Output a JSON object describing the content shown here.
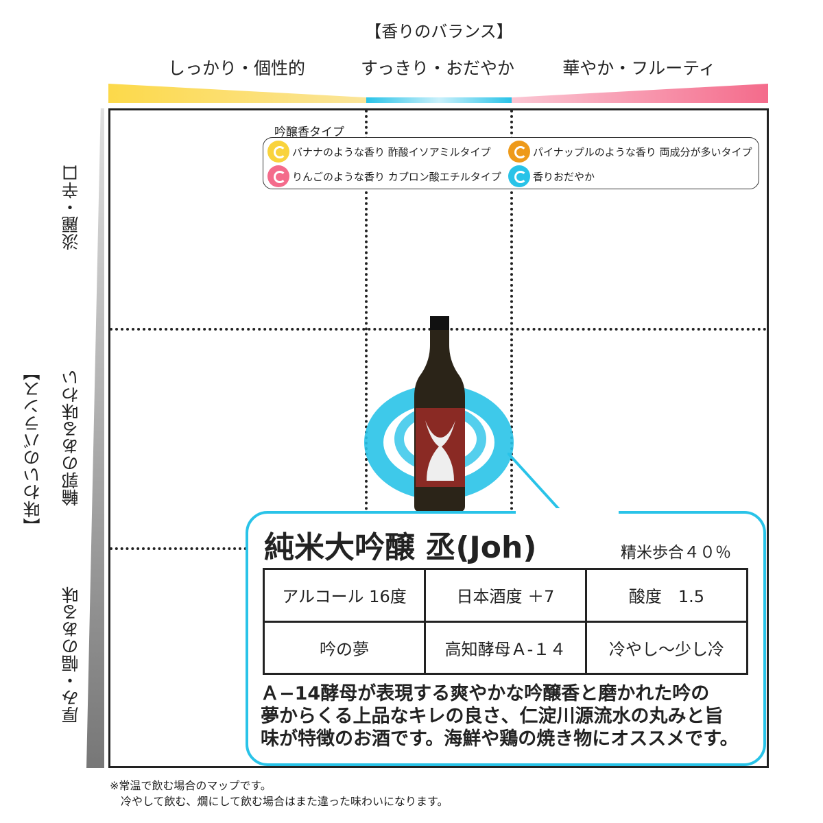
{
  "aroma_axis": {
    "title": "【香りのバランス】",
    "labels": [
      "しっかり・個性的",
      "すっきり・おだやか",
      "華やか・フルーティ"
    ],
    "colors": [
      "#fcd94a",
      "#29c3e8",
      "#f46b8b"
    ]
  },
  "taste_axis": {
    "title": "【味わいのバランス】",
    "labels": [
      "淡麗・辛口",
      "輪郭のある味わい",
      "厚み・幅のある味"
    ]
  },
  "legend": {
    "title": "吟醸香タイプ",
    "items": [
      {
        "label": "バナナのような香り 酢酸イソアミルタイプ",
        "color": "#f9d33c"
      },
      {
        "label": "パイナップルのような香り 両成分が多いタイプ",
        "color": "#ee9a1a"
      },
      {
        "label": "りんごのような香り カプロン酸エチルタイプ",
        "color": "#f46b8b"
      },
      {
        "label": "香りおだやか",
        "color": "#29c3e8"
      }
    ]
  },
  "product": {
    "name": "純米大吟醸 丞(Joh)",
    "polish": "精米歩合４０％",
    "specs": [
      [
        "アルコール 16度",
        "日本酒度 ＋7",
        "酸度　1.5"
      ],
      [
        "吟の夢",
        "高知酵母Ａ-１４",
        "冷やし～少し冷"
      ]
    ],
    "description": [
      "Ａ−14酵母が表現する爽やかな吟醸香と磨かれた吟の",
      "夢からくる上品なキレの良さ、仁淀川源流水の丸みと旨",
      "味が特徴のお酒です。海鮮や鶏の焼き物にオススメです。"
    ],
    "aroma_type": "香りおだやか"
  },
  "footnote": [
    "※常温で飲む場合のマップです。",
    "　冷やして飲む、燗にして飲む場合はまた違った味わいになります。"
  ]
}
